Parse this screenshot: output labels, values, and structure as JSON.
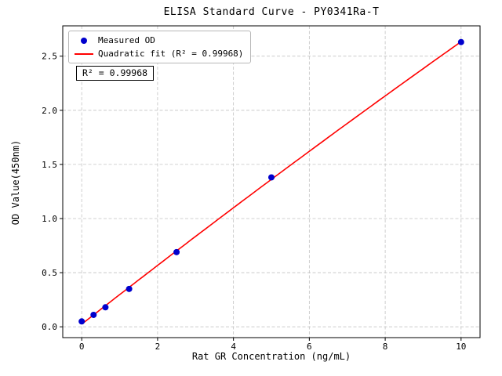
{
  "chart_data": {
    "type": "scatter",
    "title": "ELISA Standard Curve - PY0341Ra-T",
    "xlabel": "Rat GR Concentration (ng/mL)",
    "ylabel": "OD Value(450nm)",
    "xlim": [
      -0.5,
      10.5
    ],
    "ylim": [
      -0.1,
      2.78
    ],
    "xtick_labels": [
      "0",
      "2",
      "4",
      "6",
      "8",
      "10"
    ],
    "ytick_labels": [
      "0.0",
      "0.5",
      "1.0",
      "1.5",
      "2.0",
      "2.5"
    ],
    "grid": true,
    "legend_position": "upper left",
    "series": [
      {
        "name": "Measured OD",
        "type": "scatter",
        "color": "#0000cd",
        "x": [
          0,
          0.3125,
          0.625,
          1.25,
          2.5,
          5,
          10
        ],
        "y": [
          0.05,
          0.11,
          0.18,
          0.35,
          0.69,
          1.38,
          2.63
        ]
      },
      {
        "name": "Quadratic fit (R² = 0.99968)",
        "type": "line",
        "color": "#ff0000",
        "fit": "quadratic"
      }
    ],
    "annotation": "R² = 0.99968",
    "colors": {
      "point": "#0000cd",
      "line": "#ff0000",
      "grid": "#c3c3c3",
      "axis": "#000000"
    }
  }
}
